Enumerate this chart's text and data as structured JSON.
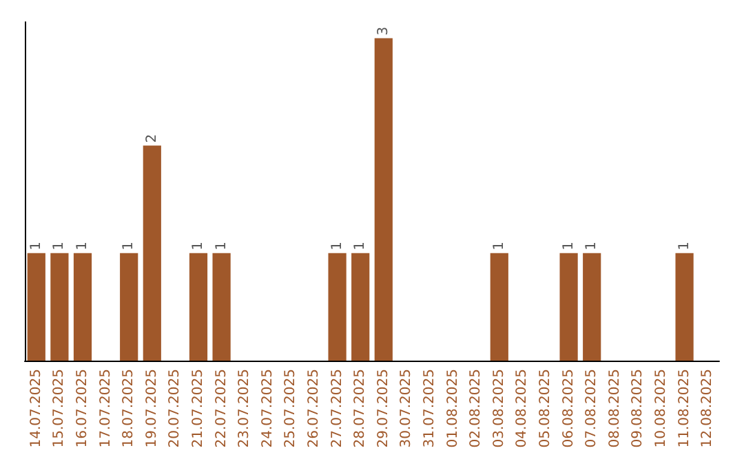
{
  "chart_data": {
    "type": "bar",
    "categories": [
      "14.07.2025",
      "15.07.2025",
      "16.07.2025",
      "17.07.2025",
      "18.07.2025",
      "19.07.2025",
      "20.07.2025",
      "21.07.2025",
      "22.07.2025",
      "23.07.2025",
      "24.07.2025",
      "25.07.2025",
      "26.07.2025",
      "27.07.2025",
      "28.07.2025",
      "29.07.2025",
      "30.07.2025",
      "31.07.2025",
      "01.08.2025",
      "02.08.2025",
      "03.08.2025",
      "04.08.2025",
      "05.08.2025",
      "06.08.2025",
      "07.08.2025",
      "08.08.2025",
      "09.08.2025",
      "10.08.2025",
      "11.08.2025",
      "12.08.2025"
    ],
    "values": [
      1,
      1,
      1,
      0,
      1,
      2,
      0,
      1,
      1,
      0,
      0,
      0,
      0,
      1,
      1,
      3,
      0,
      0,
      0,
      0,
      1,
      0,
      0,
      1,
      1,
      0,
      0,
      0,
      1,
      0
    ],
    "value_labels": [
      "1",
      "1",
      "1",
      null,
      "1",
      "2",
      null,
      "1",
      "1",
      null,
      null,
      null,
      null,
      "1",
      "1",
      "3",
      null,
      null,
      null,
      null,
      "1",
      null,
      null,
      "1",
      "1",
      null,
      null,
      null,
      "1",
      null
    ],
    "color": "#a0582a",
    "tick_labels": "x",
    "grid": false
  }
}
